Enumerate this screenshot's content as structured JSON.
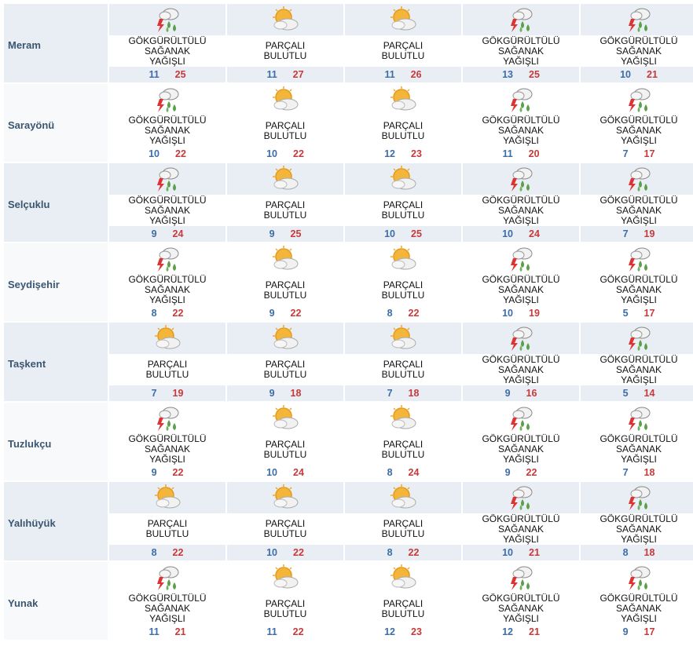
{
  "conditions": [
    "GÖKGÜRÜLTÜLÜ SAĞANAK YAĞIŞLI",
    "PARÇALI BULUTLU"
  ],
  "rows": [
    {
      "name": "Meram",
      "days": [
        {
          "condition": 0,
          "low": 11,
          "high": 25
        },
        {
          "condition": 1,
          "low": 11,
          "high": 27
        },
        {
          "condition": 1,
          "low": 11,
          "high": 26
        },
        {
          "condition": 0,
          "low": 13,
          "high": 25
        },
        {
          "condition": 0,
          "low": 10,
          "high": 21
        }
      ]
    },
    {
      "name": "Sarayönü",
      "days": [
        {
          "condition": 0,
          "low": 10,
          "high": 22
        },
        {
          "condition": 1,
          "low": 10,
          "high": 22
        },
        {
          "condition": 1,
          "low": 12,
          "high": 23
        },
        {
          "condition": 0,
          "low": 11,
          "high": 20
        },
        {
          "condition": 0,
          "low": 7,
          "high": 17
        }
      ]
    },
    {
      "name": "Selçuklu",
      "days": [
        {
          "condition": 0,
          "low": 9,
          "high": 24
        },
        {
          "condition": 1,
          "low": 9,
          "high": 25
        },
        {
          "condition": 1,
          "low": 10,
          "high": 25
        },
        {
          "condition": 0,
          "low": 10,
          "high": 24
        },
        {
          "condition": 0,
          "low": 7,
          "high": 19
        }
      ]
    },
    {
      "name": "Seydişehir",
      "days": [
        {
          "condition": 0,
          "low": 8,
          "high": 22
        },
        {
          "condition": 1,
          "low": 9,
          "high": 22
        },
        {
          "condition": 1,
          "low": 8,
          "high": 22
        },
        {
          "condition": 0,
          "low": 10,
          "high": 19
        },
        {
          "condition": 0,
          "low": 5,
          "high": 17
        }
      ]
    },
    {
      "name": "Taşkent",
      "days": [
        {
          "condition": 1,
          "low": 7,
          "high": 19
        },
        {
          "condition": 1,
          "low": 9,
          "high": 18
        },
        {
          "condition": 1,
          "low": 7,
          "high": 18
        },
        {
          "condition": 0,
          "low": 9,
          "high": 16
        },
        {
          "condition": 0,
          "low": 5,
          "high": 14
        }
      ]
    },
    {
      "name": "Tuzlukçu",
      "days": [
        {
          "condition": 0,
          "low": 9,
          "high": 22
        },
        {
          "condition": 1,
          "low": 10,
          "high": 24
        },
        {
          "condition": 1,
          "low": 8,
          "high": 24
        },
        {
          "condition": 0,
          "low": 9,
          "high": 22
        },
        {
          "condition": 0,
          "low": 7,
          "high": 18
        }
      ]
    },
    {
      "name": "Yalıhüyük",
      "days": [
        {
          "condition": 1,
          "low": 8,
          "high": 22
        },
        {
          "condition": 1,
          "low": 10,
          "high": 22
        },
        {
          "condition": 1,
          "low": 8,
          "high": 22
        },
        {
          "condition": 0,
          "low": 10,
          "high": 21
        },
        {
          "condition": 0,
          "low": 8,
          "high": 18
        }
      ]
    },
    {
      "name": "Yunak",
      "days": [
        {
          "condition": 0,
          "low": 11,
          "high": 21
        },
        {
          "condition": 1,
          "low": 11,
          "high": 22
        },
        {
          "condition": 1,
          "low": 12,
          "high": 23
        },
        {
          "condition": 0,
          "low": 12,
          "high": 21
        },
        {
          "condition": 0,
          "low": 9,
          "high": 17
        }
      ]
    }
  ]
}
